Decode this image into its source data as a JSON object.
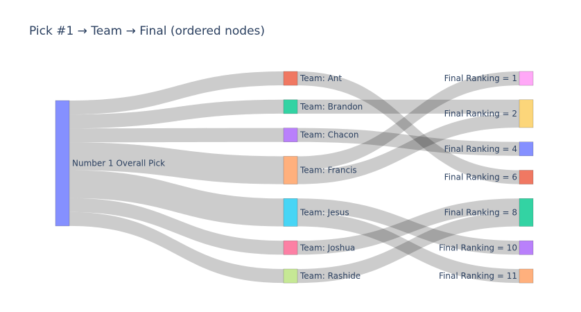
{
  "chart_data": {
    "type": "sankey",
    "title": "Pick #1 → Team → Final (ordered nodes)",
    "nodes": [
      {
        "id": "pick",
        "label": "Number 1 Overall Pick",
        "color": "#8590ff",
        "column": 0
      },
      {
        "id": "ant",
        "label": "Team: Ant",
        "color": "#f07862",
        "column": 1
      },
      {
        "id": "brandon",
        "label": "Team: Brandon",
        "color": "#33d3a3",
        "column": 1
      },
      {
        "id": "chacon",
        "label": "Team: Chacon",
        "color": "#b980fb",
        "column": 1
      },
      {
        "id": "francis",
        "label": "Team: Francis",
        "color": "#ffb07d",
        "column": 1
      },
      {
        "id": "jesus",
        "label": "Team: Jesus",
        "color": "#47d5f5",
        "column": 1
      },
      {
        "id": "joshua",
        "label": "Team: Joshua",
        "color": "#fc80a4",
        "column": 1
      },
      {
        "id": "rashide",
        "label": "Team: Rashide",
        "color": "#c6e895",
        "column": 1
      },
      {
        "id": "f1",
        "label": "Final Ranking = 1",
        "color": "#ffa8f7",
        "column": 2
      },
      {
        "id": "f2",
        "label": "Final Ranking = 2",
        "color": "#fcd67a",
        "column": 2
      },
      {
        "id": "f4",
        "label": "Final Ranking = 4",
        "color": "#8590ff",
        "column": 2
      },
      {
        "id": "f6",
        "label": "Final Ranking = 6",
        "color": "#f07862",
        "column": 2
      },
      {
        "id": "f8",
        "label": "Final Ranking = 8",
        "color": "#33d3a3",
        "column": 2
      },
      {
        "id": "f10",
        "label": "Final Ranking = 10",
        "color": "#b980fb",
        "column": 2
      },
      {
        "id": "f11",
        "label": "Final Ranking = 11",
        "color": "#ffb07d",
        "column": 2
      }
    ],
    "links": [
      {
        "source": "pick",
        "target": "ant",
        "value": 1
      },
      {
        "source": "pick",
        "target": "brandon",
        "value": 1
      },
      {
        "source": "pick",
        "target": "chacon",
        "value": 1
      },
      {
        "source": "pick",
        "target": "francis",
        "value": 2
      },
      {
        "source": "pick",
        "target": "jesus",
        "value": 2
      },
      {
        "source": "pick",
        "target": "joshua",
        "value": 1
      },
      {
        "source": "pick",
        "target": "rashide",
        "value": 1
      },
      {
        "source": "ant",
        "target": "f6",
        "value": 1
      },
      {
        "source": "brandon",
        "target": "f2",
        "value": 1
      },
      {
        "source": "chacon",
        "target": "f4",
        "value": 1
      },
      {
        "source": "francis",
        "target": "f1",
        "value": 1
      },
      {
        "source": "francis",
        "target": "f2",
        "value": 1
      },
      {
        "source": "jesus",
        "target": "f10",
        "value": 1
      },
      {
        "source": "jesus",
        "target": "f11",
        "value": 1
      },
      {
        "source": "joshua",
        "target": "f8",
        "value": 1
      },
      {
        "source": "rashide",
        "target": "f8",
        "value": 1
      }
    ]
  }
}
